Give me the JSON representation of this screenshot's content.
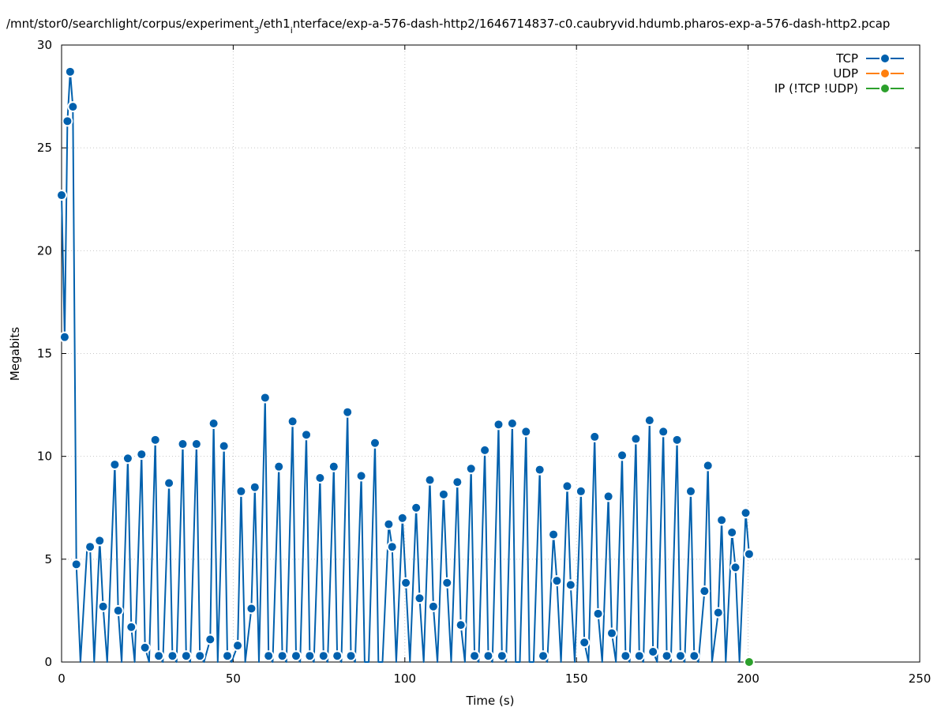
{
  "chart_data": {
    "type": "line",
    "title_parts": [
      "/mnt/stor0/searchlight/corpus/experiment",
      "3",
      "/eth1",
      "i",
      "nterface/exp-a-576-dash-http2/1646714837-c0.caubryvid.hdumb.pharos-exp-a-576-dash-http2.pcap"
    ],
    "xlabel": "Time (s)",
    "ylabel": "Megabits",
    "xlim": [
      0,
      250
    ],
    "ylim": [
      0,
      30
    ],
    "xticks": [
      0,
      50,
      100,
      150,
      200,
      250
    ],
    "yticks": [
      0,
      5,
      10,
      15,
      20,
      25,
      30
    ],
    "grid": true,
    "legend_position": "top-right",
    "series": [
      {
        "name": "TCP",
        "color": "#0060ad",
        "points": [
          [
            0,
            22.7
          ],
          [
            0.9,
            15.8
          ],
          [
            1.7,
            26.3
          ],
          [
            2.5,
            28.7
          ],
          [
            3.3,
            27.0
          ],
          [
            4.3,
            4.75
          ],
          [
            5.5,
            0
          ],
          [
            7.5,
            5.7
          ],
          [
            8.3,
            5.6
          ],
          [
            9.5,
            0
          ],
          [
            11.1,
            5.9
          ],
          [
            12.1,
            2.7
          ],
          [
            13.3,
            0
          ],
          [
            15.5,
            9.6
          ],
          [
            16.5,
            2.5
          ],
          [
            17.5,
            0
          ],
          [
            19.3,
            9.9
          ],
          [
            20.3,
            1.7
          ],
          [
            21.3,
            0
          ],
          [
            23.3,
            10.1
          ],
          [
            24.3,
            0.7
          ],
          [
            25.5,
            0
          ],
          [
            27.3,
            10.8
          ],
          [
            28.3,
            0.3
          ],
          [
            29.5,
            0
          ],
          [
            31.3,
            8.7
          ],
          [
            32.3,
            0.3
          ],
          [
            33.5,
            0
          ],
          [
            35.3,
            10.6
          ],
          [
            36.3,
            0.3
          ],
          [
            37.5,
            0
          ],
          [
            39.3,
            10.6
          ],
          [
            40.3,
            0.3
          ],
          [
            41.5,
            0
          ],
          [
            43.3,
            1.1
          ],
          [
            44.3,
            11.6
          ],
          [
            45.5,
            0
          ],
          [
            47.3,
            10.5
          ],
          [
            48.3,
            0.3
          ],
          [
            49.5,
            0
          ],
          [
            51.3,
            0.8
          ],
          [
            52.3,
            8.3
          ],
          [
            53.5,
            0
          ],
          [
            55.3,
            2.6
          ],
          [
            56.3,
            8.5
          ],
          [
            57.5,
            0
          ],
          [
            59.3,
            12.85
          ],
          [
            60.3,
            0.3
          ],
          [
            61.5,
            0
          ],
          [
            63.3,
            9.5
          ],
          [
            64.3,
            0.3
          ],
          [
            65.5,
            0
          ],
          [
            67.3,
            11.7
          ],
          [
            68.3,
            0.3
          ],
          [
            69.5,
            0
          ],
          [
            71.3,
            11.05
          ],
          [
            72.3,
            0.3
          ],
          [
            73.5,
            0
          ],
          [
            75.3,
            8.95
          ],
          [
            76.3,
            0.3
          ],
          [
            77.5,
            0
          ],
          [
            79.3,
            9.5
          ],
          [
            80.3,
            0.3
          ],
          [
            81.5,
            0
          ],
          [
            83.3,
            12.15
          ],
          [
            84.3,
            0.3
          ],
          [
            85.5,
            0
          ],
          [
            87.3,
            9.05
          ],
          [
            88.3,
            0
          ],
          [
            89.5,
            0
          ],
          [
            91.3,
            10.65
          ],
          [
            92.3,
            0
          ],
          [
            93.5,
            0
          ],
          [
            95.3,
            6.7
          ],
          [
            96.3,
            5.6
          ],
          [
            97.5,
            0
          ],
          [
            99.3,
            7.0
          ],
          [
            100.3,
            3.85
          ],
          [
            101.5,
            0
          ],
          [
            103.3,
            7.5
          ],
          [
            104.3,
            3.1
          ],
          [
            105.5,
            0
          ],
          [
            107.3,
            8.85
          ],
          [
            108.3,
            2.7
          ],
          [
            109.5,
            0
          ],
          [
            111.3,
            8.15
          ],
          [
            112.3,
            3.85
          ],
          [
            113.5,
            0
          ],
          [
            115.3,
            8.75
          ],
          [
            116.3,
            1.8
          ],
          [
            117.5,
            0
          ],
          [
            119.3,
            9.4
          ],
          [
            120.3,
            0.3
          ],
          [
            121.5,
            0
          ],
          [
            123.3,
            10.3
          ],
          [
            124.3,
            0.3
          ],
          [
            125.5,
            0
          ],
          [
            127.3,
            11.55
          ],
          [
            128.3,
            0.3
          ],
          [
            129.5,
            0
          ],
          [
            131.3,
            11.6
          ],
          [
            132.3,
            0
          ],
          [
            133.5,
            0
          ],
          [
            135.3,
            11.2
          ],
          [
            136.3,
            0
          ],
          [
            137.5,
            0
          ],
          [
            139.3,
            9.35
          ],
          [
            140.3,
            0.3
          ],
          [
            141.5,
            0
          ],
          [
            143.3,
            6.2
          ],
          [
            144.3,
            3.95
          ],
          [
            145.5,
            0
          ],
          [
            147.3,
            8.55
          ],
          [
            148.3,
            3.75
          ],
          [
            149.5,
            0
          ],
          [
            151.3,
            8.3
          ],
          [
            152.3,
            0.95
          ],
          [
            153.5,
            0
          ],
          [
            155.3,
            10.95
          ],
          [
            156.3,
            2.35
          ],
          [
            157.5,
            0
          ],
          [
            159.3,
            8.05
          ],
          [
            160.3,
            1.4
          ],
          [
            161.5,
            0
          ],
          [
            163.3,
            10.05
          ],
          [
            164.3,
            0.3
          ],
          [
            165.5,
            0
          ],
          [
            167.3,
            10.85
          ],
          [
            168.3,
            0.3
          ],
          [
            169.5,
            0
          ],
          [
            171.3,
            11.75
          ],
          [
            172.3,
            0.5
          ],
          [
            173.5,
            0
          ],
          [
            175.3,
            11.2
          ],
          [
            176.3,
            0.3
          ],
          [
            177.5,
            0
          ],
          [
            179.3,
            10.8
          ],
          [
            180.3,
            0.3
          ],
          [
            181.5,
            0
          ],
          [
            183.3,
            8.3
          ],
          [
            184.3,
            0.3
          ],
          [
            185.5,
            0
          ],
          [
            187.3,
            3.45
          ],
          [
            188.3,
            9.55
          ],
          [
            189.5,
            0
          ],
          [
            191.3,
            2.4
          ],
          [
            192.3,
            6.9
          ],
          [
            193.5,
            0
          ],
          [
            195.3,
            6.3
          ],
          [
            196.3,
            4.6
          ],
          [
            197.5,
            0
          ],
          [
            199.3,
            7.25
          ],
          [
            200.3,
            5.25
          ]
        ],
        "markers": [
          [
            0,
            22.7
          ],
          [
            0.9,
            15.8
          ],
          [
            1.7,
            26.3
          ],
          [
            2.5,
            28.7
          ],
          [
            3.3,
            27.0
          ],
          [
            4.3,
            4.75
          ],
          [
            8.3,
            5.6
          ],
          [
            11.1,
            5.9
          ],
          [
            12.1,
            2.7
          ],
          [
            15.5,
            9.6
          ],
          [
            16.5,
            2.5
          ],
          [
            19.3,
            9.9
          ],
          [
            20.3,
            1.7
          ],
          [
            23.3,
            10.1
          ],
          [
            24.3,
            0.7
          ],
          [
            27.3,
            10.8
          ],
          [
            28.3,
            0.3
          ],
          [
            31.3,
            8.7
          ],
          [
            32.3,
            0.3
          ],
          [
            35.3,
            10.6
          ],
          [
            36.3,
            0.3
          ],
          [
            39.3,
            10.6
          ],
          [
            40.3,
            0.3
          ],
          [
            43.3,
            1.1
          ],
          [
            44.3,
            11.6
          ],
          [
            47.3,
            10.5
          ],
          [
            48.3,
            0.3
          ],
          [
            51.3,
            0.8
          ],
          [
            52.3,
            8.3
          ],
          [
            55.3,
            2.6
          ],
          [
            56.3,
            8.5
          ],
          [
            59.3,
            12.85
          ],
          [
            60.3,
            0.3
          ],
          [
            63.3,
            9.5
          ],
          [
            64.3,
            0.3
          ],
          [
            67.3,
            11.7
          ],
          [
            68.3,
            0.3
          ],
          [
            71.3,
            11.05
          ],
          [
            72.3,
            0.3
          ],
          [
            75.3,
            8.95
          ],
          [
            76.3,
            0.3
          ],
          [
            79.3,
            9.5
          ],
          [
            80.3,
            0.3
          ],
          [
            83.3,
            12.15
          ],
          [
            84.3,
            0.3
          ],
          [
            87.3,
            9.05
          ],
          [
            91.3,
            10.65
          ],
          [
            95.3,
            6.7
          ],
          [
            96.3,
            5.6
          ],
          [
            99.3,
            7.0
          ],
          [
            100.3,
            3.85
          ],
          [
            103.3,
            7.5
          ],
          [
            104.3,
            3.1
          ],
          [
            107.3,
            8.85
          ],
          [
            108.3,
            2.7
          ],
          [
            111.3,
            8.15
          ],
          [
            112.3,
            3.85
          ],
          [
            115.3,
            8.75
          ],
          [
            116.3,
            1.8
          ],
          [
            119.3,
            9.4
          ],
          [
            120.3,
            0.3
          ],
          [
            123.3,
            10.3
          ],
          [
            124.3,
            0.3
          ],
          [
            127.3,
            11.55
          ],
          [
            128.3,
            0.3
          ],
          [
            131.3,
            11.6
          ],
          [
            135.3,
            11.2
          ],
          [
            139.3,
            9.35
          ],
          [
            140.3,
            0.3
          ],
          [
            143.3,
            6.2
          ],
          [
            144.3,
            3.95
          ],
          [
            147.3,
            8.55
          ],
          [
            148.3,
            3.75
          ],
          [
            151.3,
            8.3
          ],
          [
            152.3,
            0.95
          ],
          [
            155.3,
            10.95
          ],
          [
            156.3,
            2.35
          ],
          [
            159.3,
            8.05
          ],
          [
            160.3,
            1.4
          ],
          [
            163.3,
            10.05
          ],
          [
            164.3,
            0.3
          ],
          [
            167.3,
            10.85
          ],
          [
            168.3,
            0.3
          ],
          [
            171.3,
            11.75
          ],
          [
            172.3,
            0.5
          ],
          [
            175.3,
            11.2
          ],
          [
            176.3,
            0.3
          ],
          [
            179.3,
            10.8
          ],
          [
            180.3,
            0.3
          ],
          [
            183.3,
            8.3
          ],
          [
            184.3,
            0.3
          ],
          [
            187.3,
            3.45
          ],
          [
            188.3,
            9.55
          ],
          [
            191.3,
            2.4
          ],
          [
            192.3,
            6.9
          ],
          [
            195.3,
            6.3
          ],
          [
            196.3,
            4.6
          ],
          [
            199.3,
            7.25
          ],
          [
            200.3,
            5.25
          ]
        ]
      },
      {
        "name": "UDP",
        "color": "#ff7f0e",
        "points": [],
        "markers": []
      },
      {
        "name": "IP (!TCP  !UDP)",
        "color": "#2ca02c",
        "points": [
          [
            200.3,
            0
          ]
        ],
        "markers": [
          [
            200.3,
            0
          ]
        ]
      }
    ]
  }
}
